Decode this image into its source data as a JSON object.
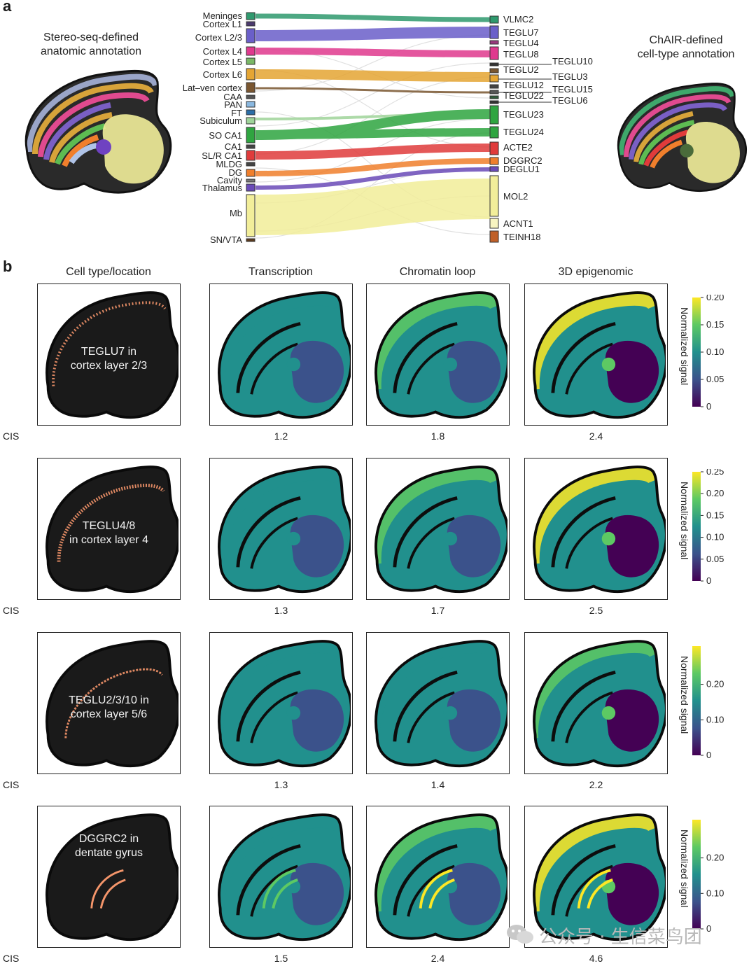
{
  "panel_a": {
    "letter": "a",
    "left_title": [
      "Stereo-seq-defined",
      "anatomic annotation"
    ],
    "right_title": [
      "ChAIR-defined",
      "cell-type annotation"
    ],
    "left_regions": [
      "Meninges",
      "Cortex L1",
      "Cortex L2/3",
      "Cortex L4",
      "Cortex L5",
      "Cortex L6",
      "Lat–ven cortex",
      "CAA",
      "PAN",
      "FT",
      "Subiculum",
      "SO CA1",
      "CA1",
      "SL/R CA1",
      "MLDG",
      "DG",
      "Cavity",
      "Thalamus",
      "Mb",
      "SN/VTA"
    ],
    "right_types": [
      "VLMC2",
      "TEGLU7",
      "TEGLU4",
      "TEGLU8",
      "TEGLU10",
      "TEGLU2",
      "TEGLU3",
      "TEGLU12",
      "TEGLU15",
      "TEGLU22",
      "TEGLU6",
      "TEGLU23",
      "TEGLU24",
      "ACTE2",
      "DGGRC2",
      "DEGLU1",
      "MOL2",
      "ACNT1",
      "TEINH18"
    ]
  },
  "panel_b": {
    "letter": "b",
    "column_headers": [
      "Cell type/location",
      "Transcription",
      "Chromatin loop",
      "3D epigenomic"
    ],
    "cis_label": "CIS",
    "colorbar_title": "Normalized signal",
    "rows": [
      {
        "label": [
          "TEGLU7 in",
          "cortex layer 2/3"
        ],
        "scores": [
          "1.2",
          "1.8",
          "2.4"
        ],
        "ticks": [
          "0.20",
          "0.15",
          "0.10",
          "0.05",
          "0"
        ]
      },
      {
        "label": [
          "TEGLU4/8",
          "in cortex layer 4"
        ],
        "scores": [
          "1.3",
          "1.7",
          "2.5"
        ],
        "ticks": [
          "0.25",
          "0.20",
          "0.15",
          "0.10",
          "0.05",
          "0"
        ]
      },
      {
        "label": [
          "TEGLU2/3/10 in",
          "cortex layer 5/6"
        ],
        "scores": [
          "1.3",
          "1.4",
          "2.2"
        ],
        "ticks": [
          "0.20",
          "0.10",
          "0"
        ]
      },
      {
        "label": [
          "DGGRC2 in",
          "dentate gyrus"
        ],
        "scores": [
          "1.5",
          "2.4",
          "4.6"
        ],
        "ticks": [
          "0.20",
          "0.10",
          "0"
        ]
      }
    ]
  },
  "colors": {
    "viridis": [
      "#440154",
      "#3b528b",
      "#21908d",
      "#5dc963",
      "#fde725"
    ],
    "highlight": "#f4956a",
    "brain_bg": "#1a1a1a"
  },
  "watermark": "公众号 · 生信菜鸟团"
}
